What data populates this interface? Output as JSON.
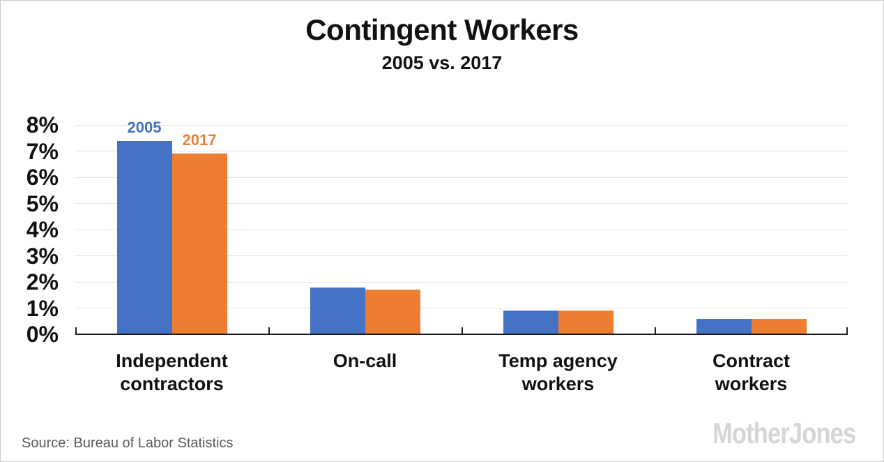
{
  "header": {
    "title": "Contingent Workers",
    "subtitle": "2005 vs. 2017"
  },
  "chart_data": {
    "type": "bar",
    "title": "Contingent Workers",
    "subtitle": "2005 vs. 2017",
    "categories": [
      "Independent contractors",
      "On-call",
      "Temp agency workers",
      "Contract workers"
    ],
    "series": [
      {
        "name": "2005",
        "color": "#4472C4",
        "values": [
          7.4,
          1.8,
          0.9,
          0.6
        ]
      },
      {
        "name": "2017",
        "color": "#ED7D31",
        "values": [
          6.9,
          1.7,
          0.9,
          0.6
        ]
      }
    ],
    "xlabel": "",
    "ylabel": "",
    "ylim": [
      0,
      8
    ],
    "y_tick_step": 1,
    "y_tick_labels": [
      "0%",
      "1%",
      "2%",
      "3%",
      "4%",
      "5%",
      "6%",
      "7%",
      "8%"
    ],
    "grid": true,
    "legend_position": "data-labels-above-first-group",
    "annotations": [
      {
        "text": "2005",
        "color": "#4472C4",
        "target": "series 2005, category Independent contractors"
      },
      {
        "text": "2017",
        "color": "#ED7D31",
        "target": "series 2017, category Independent contractors"
      }
    ]
  },
  "footer": {
    "source": "Source: Bureau of Labor Statistics",
    "logo": "MotherJones"
  },
  "colors": {
    "series_2005": "#4472C4",
    "series_2017": "#ED7D31",
    "gridline": "#e4e4e4",
    "axis": "#1a1a1a",
    "source_text": "#595959",
    "logo": "#d5d5d5",
    "background": "#ffffff"
  }
}
